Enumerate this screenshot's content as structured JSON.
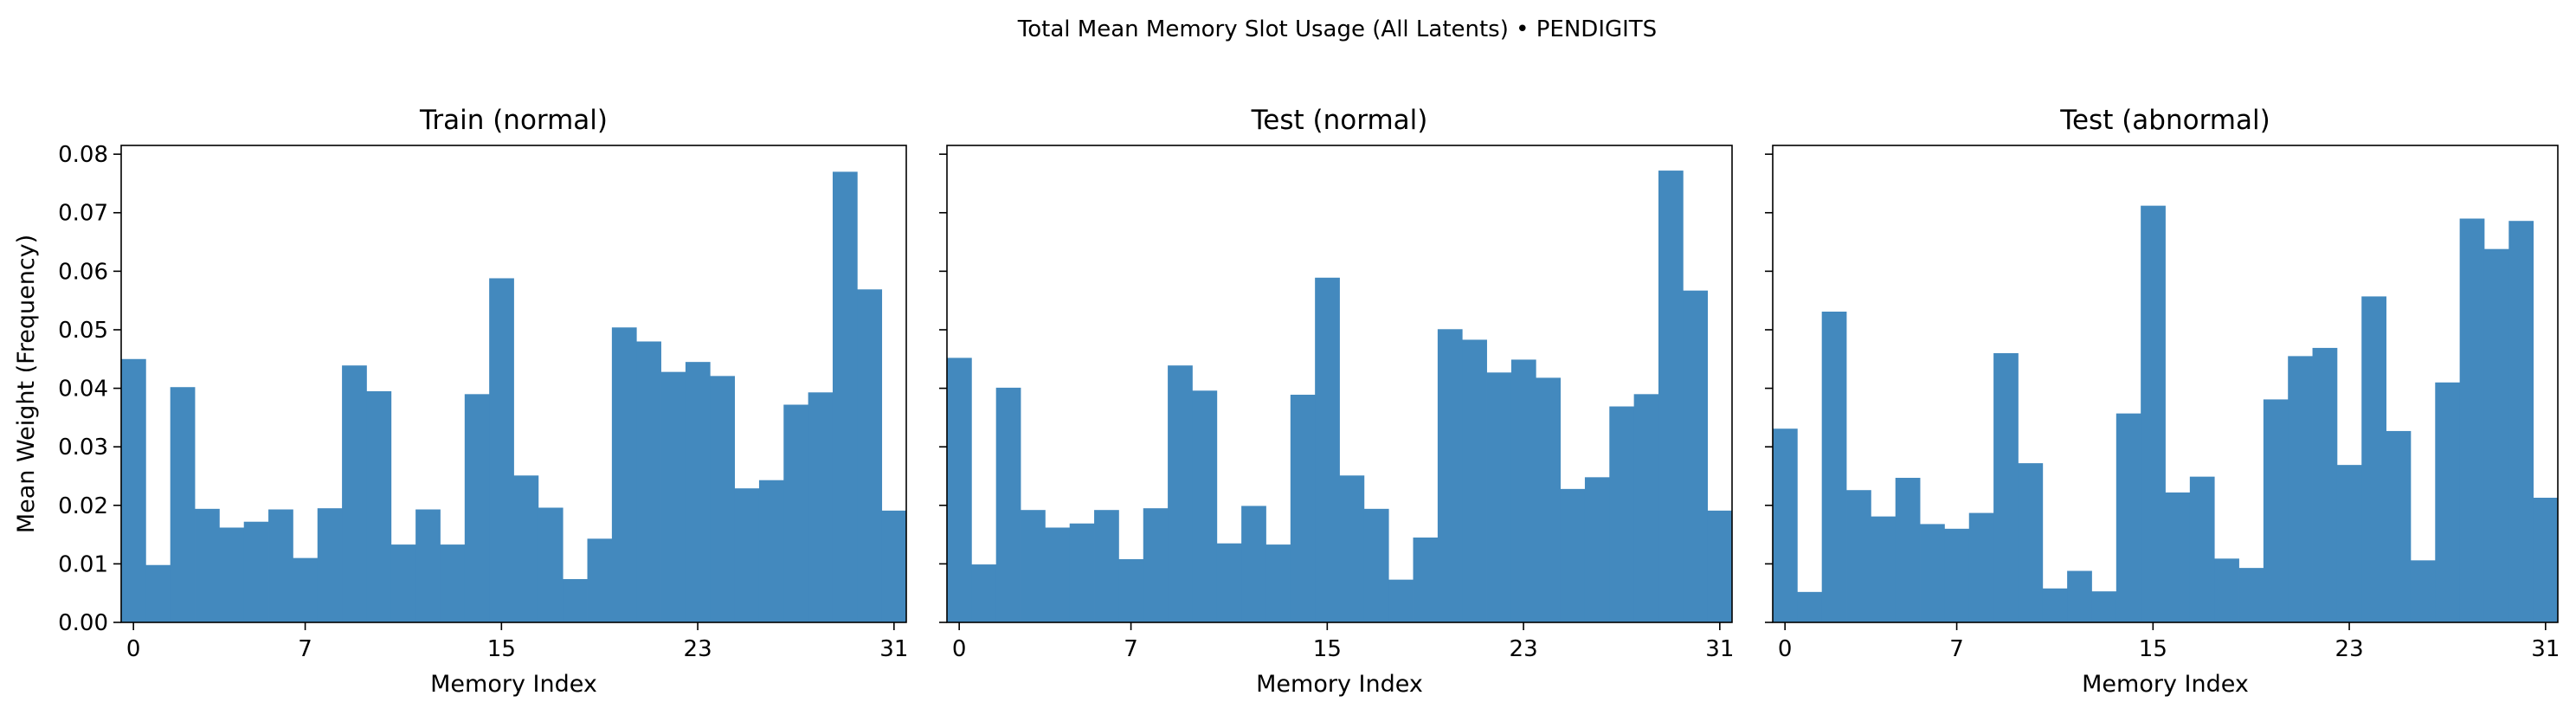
{
  "figure": {
    "suptitle": "Total Mean Memory Slot Usage (All Latents) • PENDIGITS"
  },
  "chart_data": [
    {
      "type": "bar",
      "title": "Train (normal)",
      "xlabel": "Memory Index",
      "ylabel": "Mean Weight (Frequency)",
      "x": [
        0,
        1,
        2,
        3,
        4,
        5,
        6,
        7,
        8,
        9,
        10,
        11,
        12,
        13,
        14,
        15,
        16,
        17,
        18,
        19,
        20,
        21,
        22,
        23,
        24,
        25,
        26,
        27,
        28,
        29,
        30,
        31
      ],
      "xticks": [
        0,
        7,
        15,
        23,
        31
      ],
      "yticks": [
        0.0,
        0.01,
        0.02,
        0.03,
        0.04,
        0.05,
        0.06,
        0.07,
        0.08
      ],
      "ytick_labels": [
        "0.00",
        "0.01",
        "0.02",
        "0.03",
        "0.04",
        "0.05",
        "0.06",
        "0.07",
        "0.08"
      ],
      "ylim": [
        0,
        0.0815
      ],
      "xlim": [
        -0.5,
        31.5
      ],
      "color": "#4389be",
      "values": [
        0.045,
        0.0098,
        0.0402,
        0.0194,
        0.0162,
        0.0172,
        0.0193,
        0.011,
        0.0195,
        0.0439,
        0.0395,
        0.0133,
        0.0193,
        0.0133,
        0.039,
        0.0588,
        0.0251,
        0.0196,
        0.0074,
        0.0143,
        0.0504,
        0.048,
        0.0428,
        0.0445,
        0.0421,
        0.0229,
        0.0243,
        0.0372,
        0.0393,
        0.077,
        0.0569,
        0.0191
      ]
    },
    {
      "type": "bar",
      "title": "Test (normal)",
      "xlabel": "Memory Index",
      "ylabel": "",
      "x": [
        0,
        1,
        2,
        3,
        4,
        5,
        6,
        7,
        8,
        9,
        10,
        11,
        12,
        13,
        14,
        15,
        16,
        17,
        18,
        19,
        20,
        21,
        22,
        23,
        24,
        25,
        26,
        27,
        28,
        29,
        30,
        31
      ],
      "xticks": [
        0,
        7,
        15,
        23,
        31
      ],
      "yticks": [
        0.0,
        0.01,
        0.02,
        0.03,
        0.04,
        0.05,
        0.06,
        0.07,
        0.08
      ],
      "ytick_labels": [],
      "ylim": [
        0,
        0.0815
      ],
      "xlim": [
        -0.5,
        31.5
      ],
      "color": "#4389be",
      "values": [
        0.0452,
        0.0099,
        0.0401,
        0.0192,
        0.0162,
        0.0169,
        0.0192,
        0.0108,
        0.0195,
        0.0439,
        0.0396,
        0.0135,
        0.0199,
        0.0133,
        0.0389,
        0.0589,
        0.0251,
        0.0194,
        0.0073,
        0.0145,
        0.0501,
        0.0483,
        0.0427,
        0.0449,
        0.0418,
        0.0228,
        0.0248,
        0.0369,
        0.039,
        0.0772,
        0.0567,
        0.0191
      ]
    },
    {
      "type": "bar",
      "title": "Test (abnormal)",
      "xlabel": "Memory Index",
      "ylabel": "",
      "x": [
        0,
        1,
        2,
        3,
        4,
        5,
        6,
        7,
        8,
        9,
        10,
        11,
        12,
        13,
        14,
        15,
        16,
        17,
        18,
        19,
        20,
        21,
        22,
        23,
        24,
        25,
        26,
        27,
        28,
        29,
        30,
        31
      ],
      "xticks": [
        0,
        7,
        15,
        23,
        31
      ],
      "yticks": [
        0.0,
        0.01,
        0.02,
        0.03,
        0.04,
        0.05,
        0.06,
        0.07,
        0.08
      ],
      "ytick_labels": [],
      "ylim": [
        0,
        0.0815
      ],
      "xlim": [
        -0.5,
        31.5
      ],
      "color": "#4389be",
      "values": [
        0.0331,
        0.0052,
        0.0531,
        0.0226,
        0.0181,
        0.0247,
        0.0168,
        0.016,
        0.0187,
        0.046,
        0.0272,
        0.0058,
        0.0088,
        0.0053,
        0.0357,
        0.0712,
        0.0222,
        0.0249,
        0.0109,
        0.0093,
        0.0381,
        0.0455,
        0.0469,
        0.0269,
        0.0557,
        0.0327,
        0.0106,
        0.041,
        0.069,
        0.0638,
        0.0686,
        0.0213
      ]
    }
  ]
}
